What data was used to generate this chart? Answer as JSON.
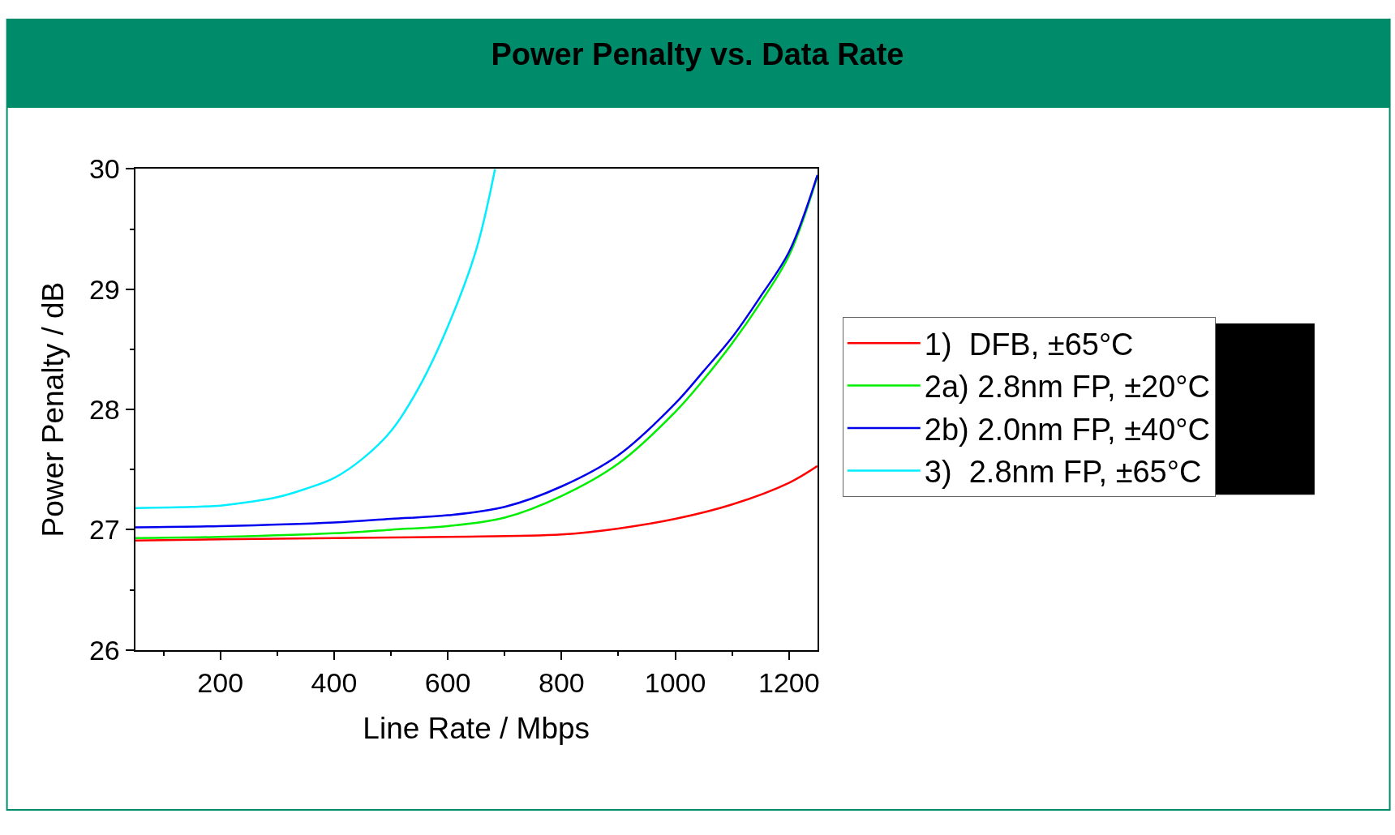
{
  "chart_data": {
    "type": "line",
    "title": "Power Penalty vs. Data Rate",
    "xlabel": "Line Rate / Mbps",
    "ylabel": "Power Penalty / dB",
    "xlim": [
      50,
      1250
    ],
    "xticks": [
      200,
      400,
      600,
      800,
      1000,
      1200
    ],
    "ylim": [
      26,
      30
    ],
    "yticks": [
      26,
      27,
      28,
      29,
      30
    ],
    "legend": "right",
    "marker": "none",
    "line_style": "solid",
    "series": [
      {
        "name": "1)  DFB, ±65°C",
        "color": "#ff0000",
        "x": [
          50,
          200,
          400,
          600,
          800,
          900,
          1000,
          1100,
          1200,
          1250
        ],
        "values": [
          26.91,
          26.92,
          26.93,
          26.94,
          26.96,
          27.01,
          27.09,
          27.21,
          27.39,
          27.53
        ]
      },
      {
        "name": "2a) 2.8nm FP, ±20°C",
        "color": "#00ee00",
        "x": [
          50,
          200,
          400,
          500,
          600,
          700,
          800,
          900,
          1000,
          1050,
          1100,
          1150,
          1200,
          1250
        ],
        "values": [
          26.93,
          26.94,
          26.97,
          27.0,
          27.03,
          27.1,
          27.28,
          27.55,
          27.98,
          28.25,
          28.55,
          28.89,
          29.28,
          29.94
        ]
      },
      {
        "name": "2b) 2.0nm FP, ±40°C",
        "color": "#0000ee",
        "x": [
          50,
          200,
          400,
          500,
          600,
          700,
          800,
          900,
          1000,
          1050,
          1100,
          1150,
          1200,
          1250
        ],
        "values": [
          27.02,
          27.03,
          27.06,
          27.09,
          27.12,
          27.19,
          27.36,
          27.62,
          28.05,
          28.32,
          28.6,
          28.94,
          29.31,
          29.95
        ]
      },
      {
        "name": "3)  2.8nm FP, ±65°C",
        "color": "#00eeff",
        "x": [
          50,
          150,
          200,
          250,
          300,
          350,
          400,
          450,
          500,
          550,
          600,
          650,
          683
        ],
        "values": [
          27.18,
          27.19,
          27.2,
          27.23,
          27.27,
          27.34,
          27.43,
          27.59,
          27.82,
          28.19,
          28.69,
          29.33,
          30.0
        ]
      }
    ]
  }
}
